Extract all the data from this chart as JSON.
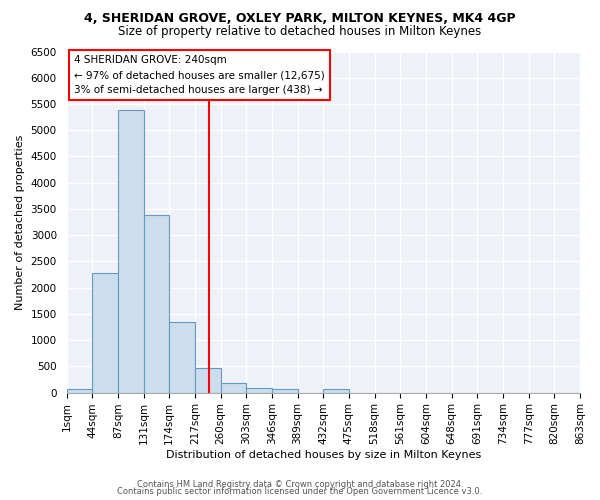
{
  "title1": "4, SHERIDAN GROVE, OXLEY PARK, MILTON KEYNES, MK4 4GP",
  "title2": "Size of property relative to detached houses in Milton Keynes",
  "xlabel": "Distribution of detached houses by size in Milton Keynes",
  "ylabel": "Number of detached properties",
  "bin_labels": [
    "1sqm",
    "44sqm",
    "87sqm",
    "131sqm",
    "174sqm",
    "217sqm",
    "260sqm",
    "303sqm",
    "346sqm",
    "389sqm",
    "432sqm",
    "475sqm",
    "518sqm",
    "561sqm",
    "604sqm",
    "648sqm",
    "691sqm",
    "734sqm",
    "777sqm",
    "820sqm",
    "863sqm"
  ],
  "bar_heights": [
    75,
    2270,
    5380,
    3390,
    1340,
    475,
    175,
    90,
    75,
    0,
    75,
    0,
    0,
    0,
    0,
    0,
    0,
    0,
    0,
    0
  ],
  "bar_color": "#ccdded",
  "bar_edge_color": "#6699bb",
  "vline_color": "red",
  "annotation_text": "4 SHERIDAN GROVE: 240sqm\n← 97% of detached houses are smaller (12,675)\n3% of semi-detached houses are larger (438) →",
  "annotation_box_color": "white",
  "annotation_box_edge": "red",
  "ylim_max": 6500,
  "yticks": [
    0,
    500,
    1000,
    1500,
    2000,
    2500,
    3000,
    3500,
    4000,
    4500,
    5000,
    5500,
    6000,
    6500
  ],
  "footer1": "Contains HM Land Registry data © Crown copyright and database right 2024.",
  "footer2": "Contains public sector information licensed under the Open Government Licence v3.0.",
  "bg_color": "#ffffff",
  "plot_bg_color": "#eef2f8",
  "grid_color": "#ffffff",
  "title1_fontsize": 9,
  "title2_fontsize": 8.5,
  "xlabel_fontsize": 8,
  "ylabel_fontsize": 8,
  "tick_fontsize": 7.5,
  "footer_fontsize": 6
}
